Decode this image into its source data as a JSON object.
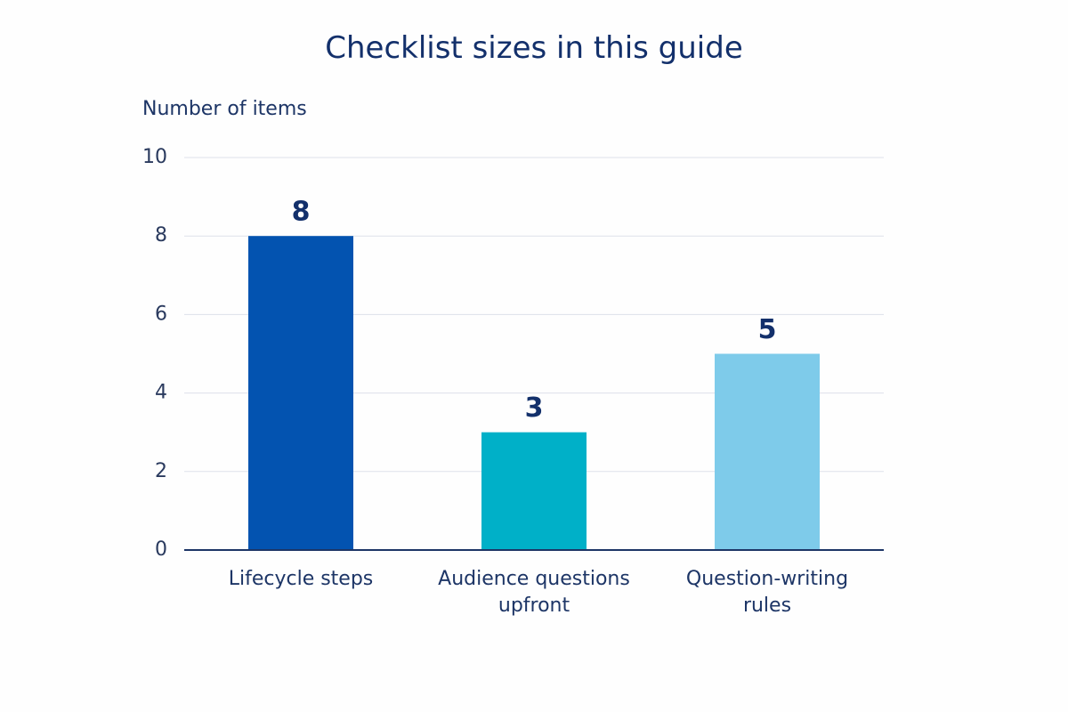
{
  "chart_data": {
    "type": "bar",
    "title": "Checklist sizes in this guide",
    "y_label": "Number of items",
    "categories": [
      "Lifecycle steps",
      "Audience questions upfront",
      "Question-writing rules"
    ],
    "values": [
      8,
      3,
      5
    ],
    "colors": [
      "#0353b0",
      "#00b0c8",
      "#7ecbea"
    ],
    "ylim": [
      0,
      10
    ],
    "yticks": [
      0,
      2,
      4,
      6,
      8,
      10
    ],
    "grid": true
  }
}
